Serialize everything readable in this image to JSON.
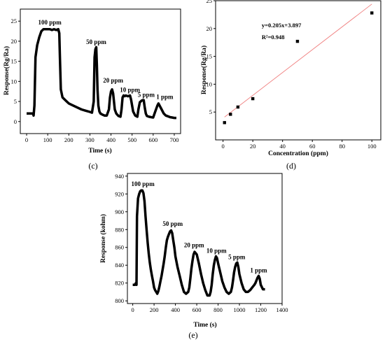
{
  "chart_data": [
    {
      "type": "line",
      "id": "c",
      "caption": "(c)",
      "xlabel": "Time (s)",
      "ylabel": "Response(Rg/Ra)",
      "xlim": [
        -30,
        730
      ],
      "ylim": [
        -3,
        28
      ],
      "xticks": [
        0,
        100,
        200,
        300,
        400,
        500,
        600,
        700
      ],
      "yticks": [
        0,
        5,
        10,
        15,
        20,
        25
      ],
      "series": [
        {
          "x": [
            0,
            30,
            33,
            37,
            42,
            50,
            60,
            70,
            80,
            90,
            100,
            110,
            120,
            130,
            140,
            150,
            155,
            158,
            162,
            170,
            180,
            190,
            200,
            220,
            240,
            260,
            280,
            300,
            310,
            318,
            322,
            326,
            330,
            333,
            336,
            340,
            345,
            350,
            360,
            370,
            380,
            390,
            395,
            400,
            405,
            410,
            418,
            425,
            435,
            445,
            450,
            455,
            460,
            465,
            470,
            480,
            490,
            495,
            505,
            515,
            525,
            530,
            537,
            545,
            550,
            555,
            560,
            565,
            570,
            580,
            590,
            600,
            610,
            620,
            625,
            630,
            640,
            650,
            660,
            670,
            680,
            690,
            700,
            710
          ],
          "values": [
            2,
            2,
            1.5,
            4,
            16,
            19,
            21,
            22.5,
            23,
            23,
            23,
            23,
            22.8,
            23,
            22.8,
            23,
            22,
            16,
            8,
            6,
            5.5,
            5,
            4.5,
            4,
            3.5,
            3,
            2.7,
            2.4,
            2.2,
            5,
            16,
            18,
            18.5,
            14,
            8,
            4,
            2.5,
            2,
            1.7,
            1.5,
            1.5,
            3,
            6,
            7.5,
            8,
            7,
            3,
            2,
            1.4,
            1.2,
            3,
            6,
            6.5,
            6.3,
            6.5,
            6.3,
            6.5,
            5.5,
            2.5,
            1.5,
            1.2,
            3,
            4.8,
            5.2,
            5.3,
            5.3,
            3.5,
            2,
            1.4,
            1.2,
            1.1,
            1,
            2.5,
            4,
            4.5,
            4,
            3,
            2,
            1.5,
            1.3,
            1.1,
            1,
            0.9,
            0.9
          ]
        }
      ],
      "annotations": [
        {
          "text": "100 ppm",
          "x": 110,
          "y": 24.2
        },
        {
          "text": "50 ppm",
          "x": 330,
          "y": 19.3
        },
        {
          "text": "20 ppm",
          "x": 410,
          "y": 9.7
        },
        {
          "text": "10 ppm",
          "x": 490,
          "y": 7.4
        },
        {
          "text": "5 ppm",
          "x": 567,
          "y": 6.1
        },
        {
          "text": "1 ppm",
          "x": 655,
          "y": 5.6
        }
      ]
    },
    {
      "type": "scatter",
      "id": "d",
      "caption": "(d)",
      "xlabel": "Concentration (ppm)",
      "ylabel": "Response(Rg/Ra)",
      "xlim": [
        -5,
        106
      ],
      "ylim": [
        0,
        25
      ],
      "xticks": [
        0,
        20,
        40,
        60,
        80,
        100
      ],
      "yticks": [
        5,
        10,
        15,
        20,
        25
      ],
      "points": {
        "x": [
          1,
          5,
          10,
          20,
          50,
          100
        ],
        "y": [
          3.1,
          4.6,
          5.9,
          7.4,
          17.7,
          22.8
        ]
      },
      "fit": {
        "slope": 0.205,
        "intercept": 3.897,
        "color": "#f08080"
      },
      "annotations": [
        {
          "text": "y=0.205x+3.897",
          "x": 26,
          "y": 20.2
        },
        {
          "text": "R²=0.948",
          "x": 26,
          "y": 18.1
        }
      ]
    },
    {
      "type": "line",
      "id": "e",
      "caption": "(e)",
      "xlabel": "Time (s)",
      "ylabel": "Response (kohm)",
      "xlim": [
        -50,
        1400
      ],
      "ylim": [
        797,
        943
      ],
      "xticks": [
        0,
        200,
        400,
        600,
        800,
        1000,
        1200,
        1400
      ],
      "yticks": [
        800,
        820,
        840,
        860,
        880,
        900,
        920,
        940
      ],
      "series": [
        {
          "x": [
            0,
            10,
            20,
            30,
            35,
            40,
            50,
            60,
            70,
            80,
            90,
            100,
            110,
            120,
            130,
            140,
            150,
            160,
            170,
            180,
            190,
            200,
            210,
            220,
            230,
            240,
            250,
            260,
            270,
            280,
            290,
            300,
            310,
            320,
            330,
            340,
            350,
            360,
            370,
            380,
            390,
            400,
            420,
            440,
            460,
            480,
            500,
            520,
            530,
            540,
            550,
            560,
            570,
            580,
            600,
            620,
            640,
            660,
            680,
            700,
            720,
            730,
            740,
            750,
            760,
            770,
            780,
            790,
            800,
            820,
            840,
            860,
            880,
            900,
            920,
            930,
            940,
            950,
            960,
            970,
            980,
            990,
            1000,
            1020,
            1040,
            1060,
            1080,
            1100,
            1120,
            1140,
            1150,
            1160,
            1170,
            1180,
            1190,
            1200,
            1220,
            1240
          ],
          "values": [
            818,
            818,
            818,
            820,
            818,
            895,
            915,
            920,
            923,
            924,
            924,
            921,
            912,
            895,
            880,
            865,
            853,
            843,
            835,
            828,
            822,
            815,
            812,
            810,
            808,
            811,
            816,
            822,
            828,
            835,
            842,
            850,
            860,
            868,
            872,
            875,
            878,
            879,
            876,
            868,
            860,
            850,
            838,
            828,
            818,
            810,
            808,
            810,
            815,
            825,
            836,
            845,
            852,
            855,
            852,
            842,
            830,
            820,
            812,
            806,
            806,
            810,
            818,
            830,
            840,
            846,
            850,
            848,
            842,
            832,
            822,
            815,
            810,
            808,
            810,
            815,
            823,
            832,
            838,
            842,
            843,
            838,
            830,
            820,
            813,
            810,
            810,
            812,
            815,
            818,
            820,
            823,
            826,
            828,
            825,
            818,
            813,
            813
          ]
        }
      ],
      "annotations": [
        {
          "text": "100 ppm",
          "x": 95,
          "y": 929
        },
        {
          "text": "50 ppm",
          "x": 375,
          "y": 884
        },
        {
          "text": "20 ppm",
          "x": 575,
          "y": 860
        },
        {
          "text": "10 ppm",
          "x": 785,
          "y": 854
        },
        {
          "text": "5 ppm",
          "x": 975,
          "y": 847
        },
        {
          "text": "1 ppm",
          "x": 1180,
          "y": 832
        }
      ]
    }
  ]
}
